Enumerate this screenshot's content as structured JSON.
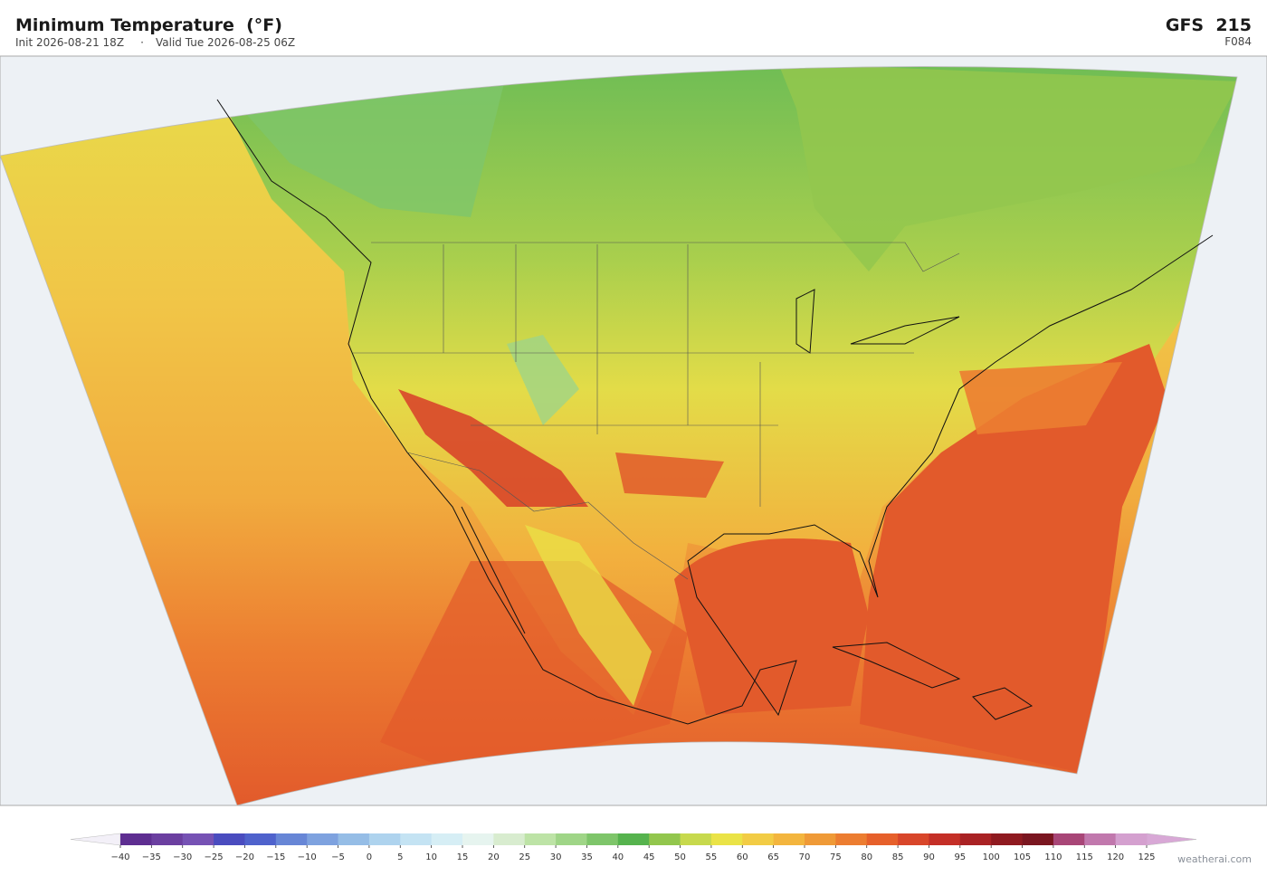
{
  "header": {
    "title": "Minimum Temperature  (°F)",
    "init": "Init 2026-08-21 18Z",
    "separator": "·",
    "valid": "Valid Tue 2026-08-25 06Z",
    "model": "GFS  215",
    "forecast_hour": "F084"
  },
  "colorbar": {
    "ticks": [
      {
        "value": -40,
        "label": "−40"
      },
      {
        "value": -35,
        "label": "−35"
      },
      {
        "value": -30,
        "label": "−30"
      },
      {
        "value": -25,
        "label": "−25"
      },
      {
        "value": -20,
        "label": "−20"
      },
      {
        "value": -15,
        "label": "−15"
      },
      {
        "value": -10,
        "label": "−10"
      },
      {
        "value": -5,
        "label": "−5"
      },
      0,
      5,
      10,
      15,
      20,
      25,
      30,
      35,
      40,
      45,
      50,
      55,
      60,
      65,
      70,
      75,
      80,
      85,
      90,
      95,
      100,
      105,
      110,
      115,
      120,
      125
    ],
    "colors": [
      "#5e2e91",
      "#6b3fa0",
      "#7652b4",
      "#4a4cbf",
      "#4f62cc",
      "#6786d6",
      "#7ea2df",
      "#95bde6",
      "#aed3ee",
      "#c4e3f3",
      "#d6eef5",
      "#e6f4ef",
      "#d8eccf",
      "#bde3a6",
      "#9fd587",
      "#7ec56a",
      "#56b34e",
      "#92c64d",
      "#c7d94d",
      "#eae347",
      "#f2cc45",
      "#f3b53e",
      "#ef9a37",
      "#ec7d31",
      "#e6602b",
      "#d8462a",
      "#c42f27",
      "#a92224",
      "#8f1a20",
      "#7a1620",
      "#a84677",
      "#c178ad",
      "#d4a0cf"
    ],
    "under_color": "#f3f0f8",
    "over_color": "#d8a8d6"
  },
  "watermark": "weatherai.com"
}
